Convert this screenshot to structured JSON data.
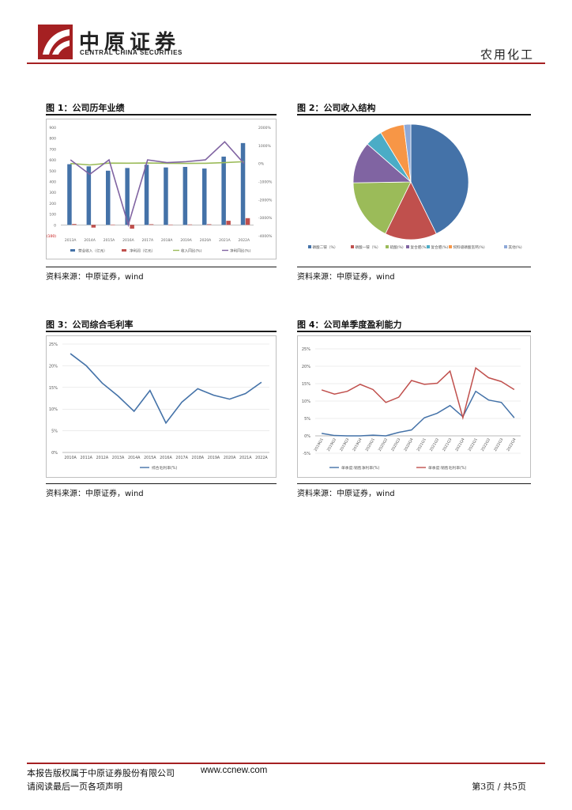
{
  "header": {
    "logo_cn": "中原证券",
    "logo_en": "CENTRAL CHINA SECURITIES",
    "industry": "农用化工"
  },
  "figures": [
    {
      "title": "图 1：公司历年业绩",
      "source": "资料来源：中原证券，wind"
    },
    {
      "title": "图 2：公司收入结构",
      "source": "资料来源：中原证券，wind"
    },
    {
      "title": "图 3：公司综合毛利率",
      "source": "资料来源：中原证券，wind"
    },
    {
      "title": "图 4：公司单季度盈利能力",
      "source": "资料来源：中原证券，wind"
    }
  ],
  "footer": {
    "copyright": "本报告版权属于中原证券股份有限公司",
    "url": "www.ccnew.com",
    "read_notice": "请阅读最后一页各项声明",
    "page": "第3页 / 共5页"
  },
  "colors": {
    "brand_red": "#a52022",
    "blue": "#4472a8",
    "red": "#c0504d",
    "green": "#9bbb59",
    "purple": "#8064a2",
    "teal": "#4bacc6",
    "orange": "#f79646",
    "slate": "#8ea9d8"
  },
  "chart_data": [
    {
      "type": "bar",
      "categories": [
        "2013A",
        "2014A",
        "2015A",
        "2016A",
        "2017A",
        "2018A",
        "2019A",
        "2020A",
        "2021A",
        "2022A"
      ],
      "ylim": [
        -100,
        900
      ],
      "yticks": [
        "900",
        "800",
        "700",
        "600",
        "500",
        "400",
        "300",
        "200",
        "100",
        "0",
        "(100)"
      ],
      "y2lim": [
        -4000,
        2000
      ],
      "y2ticks": [
        "2000%",
        "1000%",
        "0%",
        "-1000%",
        "-2000%",
        "-3000%",
        "-4000%"
      ],
      "series": [
        {
          "name": "营业收入（亿元）",
          "type": "bar",
          "axis": "left",
          "values": [
            560,
            540,
            500,
            525,
            555,
            530,
            535,
            520,
            630,
            755
          ]
        },
        {
          "name": "净利润（亿元）",
          "type": "bar",
          "axis": "left",
          "values": [
            8,
            -25,
            3,
            -35,
            6,
            3,
            4,
            6,
            38,
            62
          ]
        },
        {
          "name": "收入同比(%)",
          "type": "line",
          "axis": "right",
          "values": [
            0,
            -80,
            20,
            15,
            25,
            10,
            5,
            10,
            50,
            100
          ]
        },
        {
          "name": "净利同比(%)",
          "type": "line",
          "axis": "right",
          "values": [
            200,
            -600,
            200,
            -3400,
            200,
            50,
            100,
            200,
            1200,
            0
          ]
        }
      ],
      "legend": "bottom"
    },
    {
      "type": "pie",
      "labels": [
        "磷酸二铵（%）",
        "磷酸一铵（%）",
        "硫酸(%)",
        "复合肥(%)",
        "复合肥(%)",
        "饲料级磷酸氢钙(%)",
        "其他(%)"
      ],
      "values": [
        44,
        15,
        18,
        12,
        5,
        7,
        2
      ],
      "colors": [
        "#4472a8",
        "#c0504d",
        "#9bbb59",
        "#8064a2",
        "#4bacc6",
        "#f79646",
        "#8ea9d8"
      ],
      "legend": "bottom"
    },
    {
      "type": "line",
      "categories": [
        "2010A",
        "2011A",
        "2012A",
        "2013A",
        "2014A",
        "2015A",
        "2016A",
        "2017A",
        "2018A",
        "2019A",
        "2020A",
        "2021A",
        "2022A"
      ],
      "ylim": [
        0,
        25
      ],
      "yticks": [
        "25%",
        "20%",
        "15%",
        "10%",
        "5%",
        "0%"
      ],
      "series": [
        {
          "name": "综合毛利率(%)",
          "values": [
            22.8,
            20.0,
            16.0,
            13.0,
            9.5,
            14.3,
            6.8,
            11.6,
            14.7,
            13.2,
            12.3,
            13.6,
            16.2
          ]
        }
      ],
      "legend": "bottom"
    },
    {
      "type": "line",
      "categories": [
        "2019Q1",
        "2019Q2",
        "2019Q3",
        "2019Q4",
        "2020Q1",
        "2020Q2",
        "2020Q3",
        "2020Q4",
        "2021Q1",
        "2021Q2",
        "2021Q3",
        "2021Q4",
        "2022Q1",
        "2022Q2",
        "2022Q3",
        "2022Q4"
      ],
      "ylim": [
        -5,
        25
      ],
      "yticks": [
        "25%",
        "20%",
        "15%",
        "10%",
        "5%",
        "0%",
        "-5%"
      ],
      "series": [
        {
          "name": "单季度:销售净利率(%)",
          "color": "#4472a8",
          "values": [
            0.7,
            0.1,
            0.0,
            0.0,
            0.2,
            0.0,
            1.0,
            1.7,
            5.2,
            6.5,
            8.7,
            5.5,
            12.8,
            10.3,
            9.6,
            5.2
          ]
        },
        {
          "name": "单季度:销售毛利率(%)",
          "color": "#c0504d",
          "values": [
            13.2,
            12.0,
            12.8,
            14.8,
            13.3,
            9.6,
            11.1,
            15.9,
            14.8,
            15.1,
            18.6,
            5.2,
            19.5,
            16.7,
            15.6,
            13.3
          ]
        }
      ],
      "legend": "bottom"
    }
  ]
}
